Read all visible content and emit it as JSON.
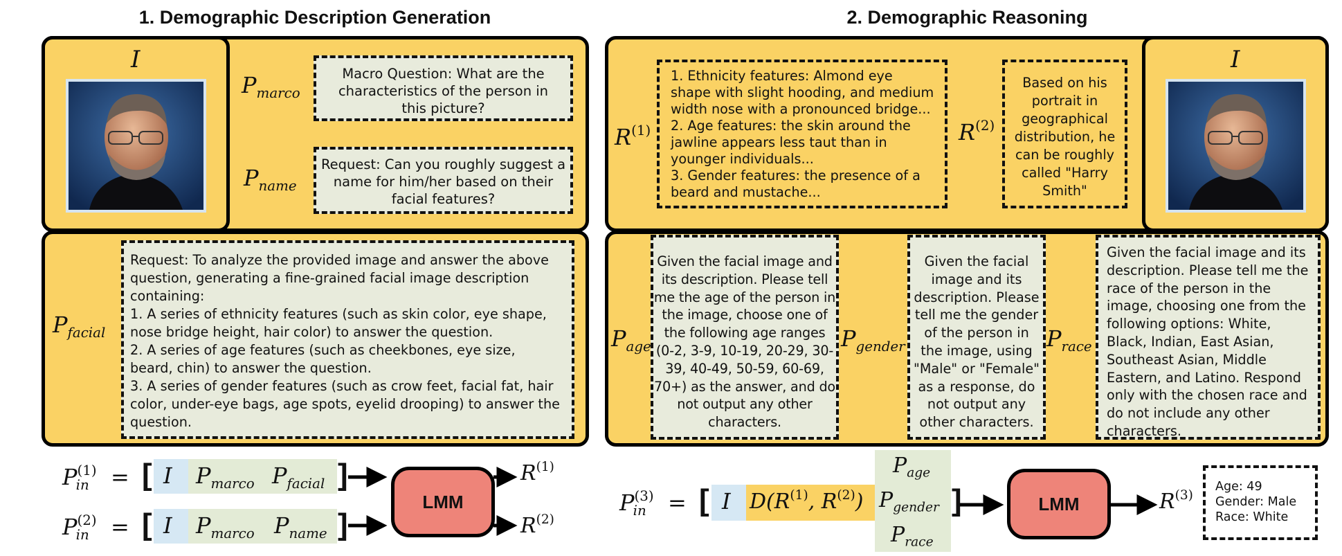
{
  "section1": {
    "title": "1. Demographic Description Generation",
    "image_label": "I",
    "p_marco_label": "P",
    "p_marco_sub": "marco",
    "p_marco_text": "Macro Question: What are the characteristics of the person in this picture?",
    "p_name_label": "P",
    "p_name_sub": "name",
    "p_name_text": "Request: Can you roughly suggest a name for him/her based on their facial features?",
    "p_facial_label": "P",
    "p_facial_sub": "facial",
    "p_facial_lines": [
      "Request: To analyze the provided image and answer the above",
      "question, generating a fine-grained facial image description",
      "containing:",
      "1. A series of ethnicity features (such as skin color, eye shape,",
      "nose bridge height, hair color) to answer the question.",
      "2. A series of age features (such as cheekbones, eye size,",
      "beard, chin) to answer the question.",
      "3. A series of gender features (such as crow feet, facial fat, hair",
      "color, under-eye bags, age spots, eyelid drooping) to answer the",
      "question."
    ]
  },
  "section2": {
    "title": "2. Demographic Reasoning",
    "image_label": "I",
    "r1_label": "R",
    "r1_sup": "(1)",
    "r1_lines": [
      "1. Ethnicity features: Almond eye",
      "shape with slight hooding, and medium",
      "width nose with a pronounced bridge...",
      "2. Age features: the skin around the",
      "jawline appears less taut than in",
      "younger individuals...",
      "3. Gender features: the presence of a",
      "beard and mustache..."
    ],
    "r2_label": "R",
    "r2_sup": "(2)",
    "r2_text": "Based on his portrait in geographical distribution, he can be roughly called \"Harry Smith\"",
    "p_age_label": "P",
    "p_age_sub": "age",
    "p_age_text": "Given the facial image and its description. Please tell me the age of the person in the image, choose one of the following age ranges (0-2, 3-9, 10-19, 20-29, 30-39, 40-49, 50-59, 60-69, 70+) as the answer, and do not output any other characters.",
    "p_gender_label": "P",
    "p_gender_sub": "gender",
    "p_gender_text": "Given the facial image and its description. Please tell me the gender of the person in the image, using \"Male\" or \"Female\" as a response, do not output any other characters.",
    "p_race_label": "P",
    "p_race_sub": "race",
    "p_race_text": "Given the facial image and its description. Please tell me the race of the person in the image, choosing one from the following options: White, Black, Indian, East Asian, Southeast Asian, Middle Eastern, and Latino. Respond only with the chosen race and do not include any other characters."
  },
  "bottom": {
    "eq1_lhs": "P",
    "eq1_sub": "in",
    "eq1_sup": "(1)",
    "eq2_lhs": "P",
    "eq2_sub": "in",
    "eq2_sup": "(2)",
    "eq3_lhs": "P",
    "eq3_sub": "in",
    "eq3_sup": "(3)",
    "equals": "=",
    "open_bracket": "[",
    "close_bracket": "]",
    "token_I": "I",
    "token_marco": "marco",
    "token_facial": "facial",
    "token_name": "name",
    "token_age": "age",
    "token_gender": "gender",
    "token_race": "race",
    "token_P": "P",
    "d_expr": "D(R(1), R(2))",
    "lmm_label": "LMM",
    "out_R": "R",
    "out1_sup": "(1)",
    "out2_sup": "(2)",
    "out3_sup": "(3)",
    "result_lines": [
      "Age: 49",
      "Gender: Male",
      "Race: White"
    ]
  },
  "colors": {
    "panel": "#FAD264",
    "prompt_box": "#E8EBDC",
    "lmm": "#EE8479",
    "image_token": "#D6E8F4"
  }
}
